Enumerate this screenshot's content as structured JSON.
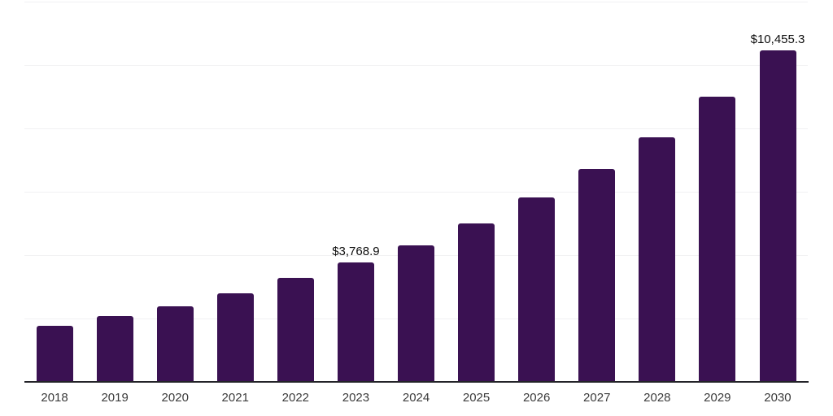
{
  "chart_data": {
    "type": "bar",
    "title": "",
    "categories": [
      "2018",
      "2019",
      "2020",
      "2021",
      "2022",
      "2023",
      "2024",
      "2025",
      "2026",
      "2027",
      "2028",
      "2029",
      "2030"
    ],
    "values": [
      1775,
      2080,
      2380,
      2800,
      3280,
      3768.9,
      4320,
      5010,
      5810,
      6730,
      7730,
      8990,
      10455.3
    ],
    "annotations": [
      {
        "category": "2023",
        "text": "$3,768.9"
      },
      {
        "category": "2030",
        "text": "$10,455.3"
      }
    ],
    "xlabel": "",
    "ylabel": "",
    "ylim": [
      0,
      12000
    ],
    "gridline_step": 2000,
    "grid": true,
    "legend": "none",
    "colors": {
      "bar": "#3a1152",
      "gridline": "#f1f1f3",
      "axis_line": "#232328",
      "tick_label": "#3b3b3b",
      "annotation_text": "#0f0f0f",
      "background": "#ffffff"
    }
  }
}
